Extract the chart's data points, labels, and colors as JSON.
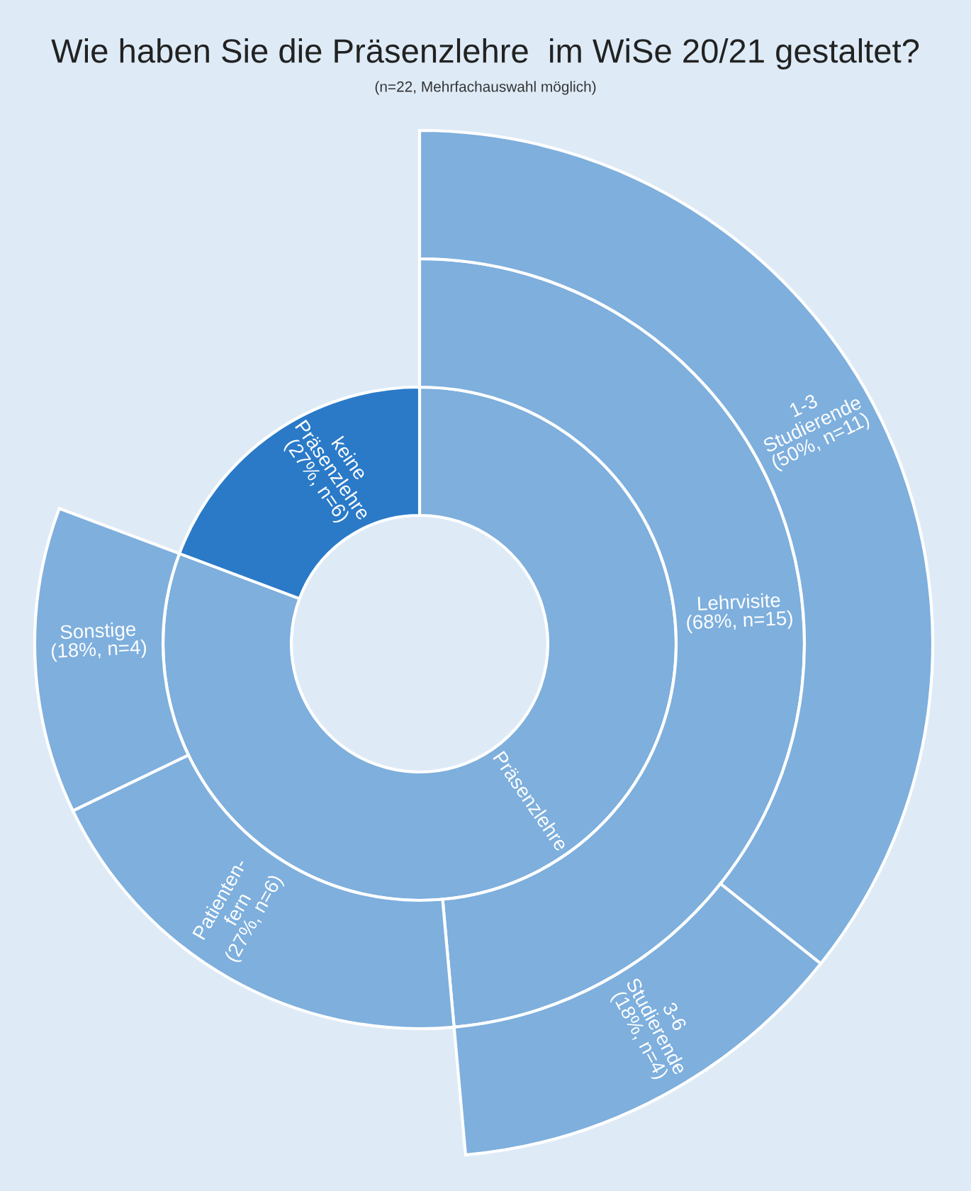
{
  "chart_data": {
    "type": "other",
    "title": "Wie haben Sie die Präsenzlehre  im WiSe 20/21 gestaltet?",
    "subtitle": "(n=22, Mehrfachauswahl möglich)",
    "categories": [
      "Präsenzlehre",
      "keine\nPräsenzlehre",
      "Lehrvisite",
      "Patienten-\nfern",
      "Sonstige",
      "1-3\nStudierende",
      "3-6\nStudierende"
    ],
    "series": [
      {
        "values": [
          null,
          27,
          null,
          null,
          null,
          null,
          null
        ],
        "value_labels": [
          null,
          "(27%, n=6)",
          null,
          null,
          null,
          null,
          null
        ],
        "colors": [
          "#7eafdd",
          "#2a7ac8",
          null,
          null,
          null,
          null,
          null
        ]
      },
      {
        "values": [
          null,
          null,
          68,
          27,
          18,
          null,
          null
        ],
        "value_labels": [
          null,
          null,
          "(68%, n=15)",
          "(27%, n=6)",
          "(18%, n=4)",
          null,
          null
        ],
        "colors": [
          null,
          null,
          "#7eafdd",
          "#7eafdd",
          "#7eafdd",
          null,
          null
        ]
      },
      {
        "values": [
          null,
          null,
          null,
          null,
          null,
          50,
          18
        ],
        "value_labels": [
          null,
          null,
          null,
          null,
          null,
          "(50%, n=11)",
          "(18%, n=4)"
        ],
        "colors": [
          null,
          null,
          null,
          null,
          null,
          "#7eafdd",
          "#7eafdd"
        ]
      }
    ]
  }
}
